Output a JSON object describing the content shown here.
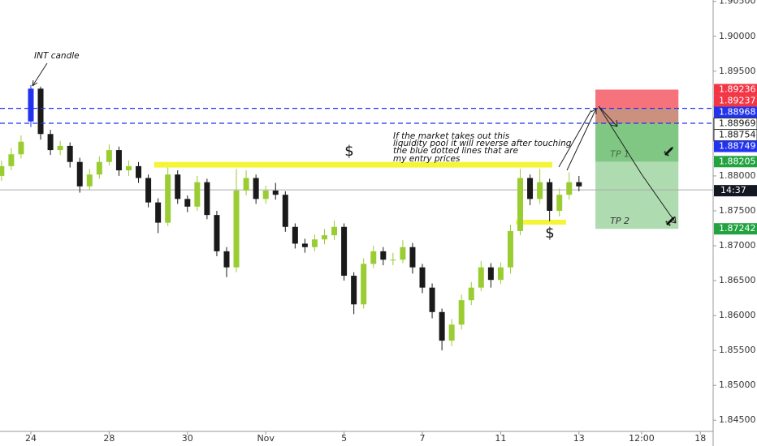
{
  "chart_data": {
    "type": "candlestick",
    "x": [
      -0.75,
      -0.5,
      -0.25,
      0,
      0.25,
      0.5,
      0.75,
      1,
      1.25,
      1.5,
      1.75,
      2,
      2.25,
      2.5,
      2.75,
      3,
      3.25,
      3.5,
      3.75,
      4,
      4.25,
      4.5,
      4.75,
      5,
      5.25,
      5.5,
      5.75,
      6,
      6.25,
      6.5,
      6.75,
      7,
      7.25,
      7.5,
      7.75,
      8,
      8.25,
      8.5,
      8.75,
      9,
      9.25,
      9.5,
      9.75,
      10,
      10.25,
      10.5,
      10.75,
      11,
      11.25,
      11.5,
      11.75,
      12,
      12.25,
      12.5,
      12.75,
      13,
      13.25,
      13.5,
      13.75,
      14
    ],
    "open": [
      1.88,
      1.8814,
      1.8831,
      1.8878,
      1.8925,
      1.886,
      1.8837,
      1.8843,
      1.882,
      1.8785,
      1.8802,
      1.882,
      1.8837,
      1.8808,
      1.8814,
      1.8797,
      1.8762,
      1.8733,
      1.8802,
      1.8767,
      1.8756,
      1.8791,
      1.8744,
      1.8692,
      1.8669,
      1.8779,
      1.8797,
      1.8767,
      1.8779,
      1.8773,
      1.8727,
      1.8703,
      1.8698,
      1.8709,
      1.8715,
      1.8727,
      1.8657,
      1.8616,
      1.8674,
      1.8692,
      1.868,
      1.868,
      1.8698,
      1.8669,
      1.864,
      1.8605,
      1.8564,
      1.8587,
      1.8622,
      1.864,
      1.8669,
      1.8651,
      1.8669,
      1.8721,
      1.8797,
      1.8767,
      1.8791,
      1.875,
      1.8773,
      1.8791
    ],
    "high": [
      1.8822,
      1.884,
      1.8858,
      1.893,
      1.8928,
      1.8866,
      1.885,
      1.8848,
      1.8826,
      1.881,
      1.8828,
      1.8845,
      1.8842,
      1.8822,
      1.882,
      1.8802,
      1.8768,
      1.8812,
      1.8808,
      1.8772,
      1.88,
      1.8796,
      1.875,
      1.8698,
      1.881,
      1.8808,
      1.8802,
      1.8786,
      1.879,
      1.8778,
      1.8732,
      1.871,
      1.8716,
      1.8724,
      1.8736,
      1.8732,
      1.8662,
      1.8682,
      1.87,
      1.8698,
      1.869,
      1.8708,
      1.8704,
      1.8674,
      1.8646,
      1.861,
      1.8595,
      1.863,
      1.8648,
      1.8678,
      1.8675,
      1.8676,
      1.873,
      1.881,
      1.8802,
      1.881,
      1.8796,
      1.8782,
      1.8805,
      1.88
    ],
    "low": [
      1.8793,
      1.8808,
      1.8825,
      1.887,
      1.8852,
      1.883,
      1.883,
      1.8812,
      1.8776,
      1.878,
      1.8796,
      1.8815,
      1.88,
      1.88,
      1.879,
      1.8755,
      1.8718,
      1.8728,
      1.876,
      1.8748,
      1.875,
      1.8738,
      1.8685,
      1.8655,
      1.8662,
      1.8772,
      1.876,
      1.876,
      1.8766,
      1.872,
      1.8696,
      1.869,
      1.8692,
      1.8702,
      1.8708,
      1.865,
      1.8602,
      1.861,
      1.8668,
      1.8672,
      1.8672,
      1.8675,
      1.866,
      1.8632,
      1.8596,
      1.855,
      1.8556,
      1.858,
      1.8615,
      1.8635,
      1.864,
      1.8645,
      1.866,
      1.8715,
      1.8758,
      1.876,
      1.8735,
      1.8742,
      1.8766,
      1.8778
    ],
    "close": [
      1.8814,
      1.8831,
      1.8849,
      1.8925,
      1.886,
      1.8837,
      1.8843,
      1.882,
      1.8785,
      1.8802,
      1.882,
      1.8837,
      1.8808,
      1.8814,
      1.8797,
      1.8762,
      1.8733,
      1.8802,
      1.8767,
      1.8756,
      1.8791,
      1.8744,
      1.8692,
      1.8669,
      1.8779,
      1.8797,
      1.8767,
      1.8779,
      1.8773,
      1.8727,
      1.8703,
      1.8698,
      1.8709,
      1.8715,
      1.8727,
      1.8657,
      1.8616,
      1.8674,
      1.8692,
      1.868,
      1.868,
      1.8698,
      1.8669,
      1.864,
      1.8605,
      1.8564,
      1.8587,
      1.8622,
      1.864,
      1.8669,
      1.8651,
      1.8669,
      1.8721,
      1.8797,
      1.8767,
      1.8791,
      1.875,
      1.8773,
      1.8791,
      1.8785
    ],
    "up_color": "#9acd32",
    "down_color": "#1a1a1a",
    "highlight_index": 3,
    "highlight_color": "#2233ee",
    "xlim": [
      -0.788,
      17.427
    ],
    "ylim": [
      1.8434,
      1.9052
    ],
    "xticks": [
      {
        "value": 0,
        "label": "24"
      },
      {
        "value": 2,
        "label": "28"
      },
      {
        "value": 4,
        "label": "30"
      },
      {
        "value": 6,
        "label": "Nov"
      },
      {
        "value": 8,
        "label": "5"
      },
      {
        "value": 10,
        "label": "7"
      },
      {
        "value": 12,
        "label": "11"
      },
      {
        "value": 14,
        "label": "13"
      },
      {
        "value": 15.6,
        "label": "12:00"
      },
      {
        "value": 17.1,
        "label": "18"
      }
    ],
    "yticks": [
      {
        "value": 1.905,
        "label": "1.90500"
      },
      {
        "value": 1.9,
        "label": "1.90000"
      },
      {
        "value": 1.895,
        "label": "1.89500"
      },
      {
        "value": 1.89,
        "label": "1.89000"
      },
      {
        "value": 1.885,
        "label": "1.88500"
      },
      {
        "value": 1.88,
        "label": "1.88000"
      },
      {
        "value": 1.875,
        "label": "1.87500"
      },
      {
        "value": 1.87,
        "label": "1.87000"
      },
      {
        "value": 1.865,
        "label": "1.86500"
      },
      {
        "value": 1.86,
        "label": "1.86000"
      },
      {
        "value": 1.855,
        "label": "1.85500"
      },
      {
        "value": 1.85,
        "label": "1.85000"
      },
      {
        "value": 1.845,
        "label": "1.84500"
      }
    ],
    "entry_lines": [
      1.88968,
      1.88754
    ],
    "entry_line_color": "#2233ee",
    "current_price": 1.878,
    "countdown": "14:37",
    "zones": [
      {
        "x": [
          3.15,
          13.32
        ],
        "y": [
          1.882,
          1.8812
        ],
        "color": "#f4f538"
      },
      {
        "x": [
          12.39,
          13.67
        ],
        "y": [
          1.87372,
          1.87302
        ],
        "color": "#f4f538"
      }
    ],
    "positions": [
      {
        "x": [
          14.42,
          16.54
        ],
        "stop": 1.89236,
        "entry": 1.88968,
        "target": 1.88205,
        "label": "TP 1"
      },
      {
        "x": [
          14.42,
          16.54
        ],
        "stop": 1.89237,
        "entry": 1.88754,
        "target": 1.87242,
        "label": "TP 2"
      }
    ],
    "price_tags": [
      {
        "value": 1.89236,
        "color": "#f23645"
      },
      {
        "value": 1.89237,
        "color": "#f23645"
      },
      {
        "value": 1.88968,
        "color": "#2233ee"
      },
      {
        "value": 1.88969,
        "color": "#ffffff"
      },
      {
        "value": 1.88754,
        "color": "#ffffff"
      },
      {
        "value": 1.88749,
        "color": "#2233ee"
      },
      {
        "value": 1.88205,
        "color": "#22a340"
      },
      {
        "value": 1.87242,
        "color": "#22a340"
      }
    ],
    "annotations": {
      "int_candle": "INT candle",
      "dollar_1": "$",
      "dollar_2": "$",
      "note": [
        "If the market takes out this",
        "liquidity pool it will reverse after touching",
        "the blue dotted lines that are",
        "my entry prices"
      ]
    }
  }
}
